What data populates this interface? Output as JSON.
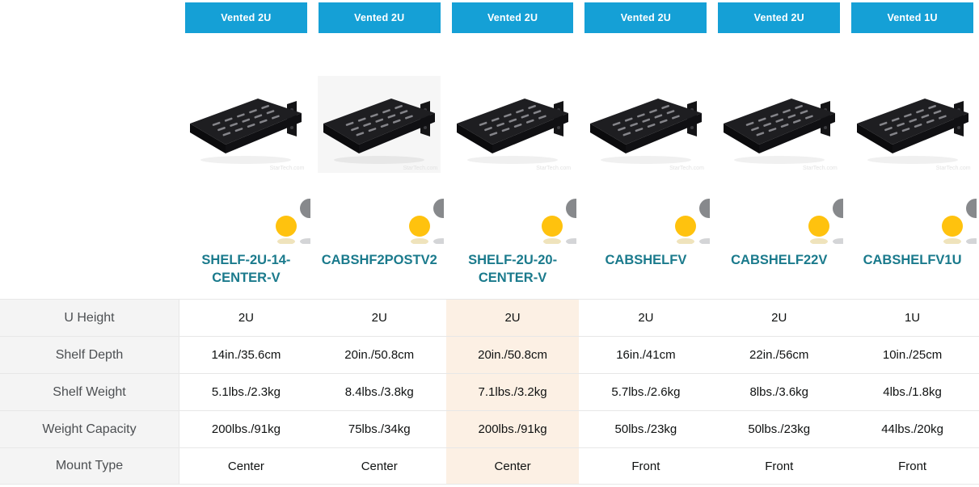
{
  "colors": {
    "badge_blue": "#15A0D6",
    "title_teal": "#1A7A8C",
    "highlight_bg": "#FCF0E4",
    "label_column_bg": "#F4F4F4",
    "border": "#E7E7E7",
    "logo_dot_yellow": "#FFC20E",
    "logo_dot_gray": "#87898C",
    "value_text": "#0F1111",
    "label_text": "#4C4F52"
  },
  "image_watermark": "StarTech.com",
  "table": {
    "rows": [
      {
        "label": "U Height",
        "key": "u_height"
      },
      {
        "label": "Shelf Depth",
        "key": "shelf_depth"
      },
      {
        "label": "Shelf Weight",
        "key": "shelf_weight"
      },
      {
        "label": "Weight Capacity",
        "key": "weight_capacity"
      },
      {
        "label": "Mount Type",
        "key": "mount_type"
      }
    ]
  },
  "products": [
    {
      "badge": "Vented 2U",
      "sku": "SHELF-2U-14-CENTER-V",
      "u_height": "2U",
      "shelf_depth": "14in./35.6cm",
      "shelf_weight": "5.1lbs./2.3kg",
      "weight_capacity": "200lbs./91kg",
      "mount_type": "Center",
      "highlighted": false,
      "photo_bg": "white"
    },
    {
      "badge": "Vented 2U",
      "sku": "CABSHF2POSTV2",
      "u_height": "2U",
      "shelf_depth": "20in./50.8cm",
      "shelf_weight": "8.4lbs./3.8kg",
      "weight_capacity": "75lbs./34kg",
      "mount_type": "Center",
      "highlighted": false,
      "photo_bg": "gray"
    },
    {
      "badge": "Vented 2U",
      "sku": "SHELF-2U-20-CENTER-V",
      "u_height": "2U",
      "shelf_depth": "20in./50.8cm",
      "shelf_weight": "7.1lbs./3.2kg",
      "weight_capacity": "200lbs./91kg",
      "mount_type": "Center",
      "highlighted": true,
      "photo_bg": "white"
    },
    {
      "badge": "Vented 2U",
      "sku": "CABSHELFV",
      "u_height": "2U",
      "shelf_depth": "16in./41cm",
      "shelf_weight": "5.7lbs./2.6kg",
      "weight_capacity": "50lbs./23kg",
      "mount_type": "Front",
      "highlighted": false,
      "photo_bg": "white"
    },
    {
      "badge": "Vented 2U",
      "sku": "CABSHELF22V",
      "u_height": "2U",
      "shelf_depth": "22in./56cm",
      "shelf_weight": "8lbs./3.6kg",
      "weight_capacity": "50lbs./23kg",
      "mount_type": "Front",
      "highlighted": false,
      "photo_bg": "white"
    },
    {
      "badge": "Vented 1U",
      "sku": "CABSHELFV1U",
      "u_height": "1U",
      "shelf_depth": "10in./25cm",
      "shelf_weight": "4lbs./1.8kg",
      "weight_capacity": "44lbs./20kg",
      "mount_type": "Front",
      "highlighted": false,
      "photo_bg": "white"
    }
  ]
}
